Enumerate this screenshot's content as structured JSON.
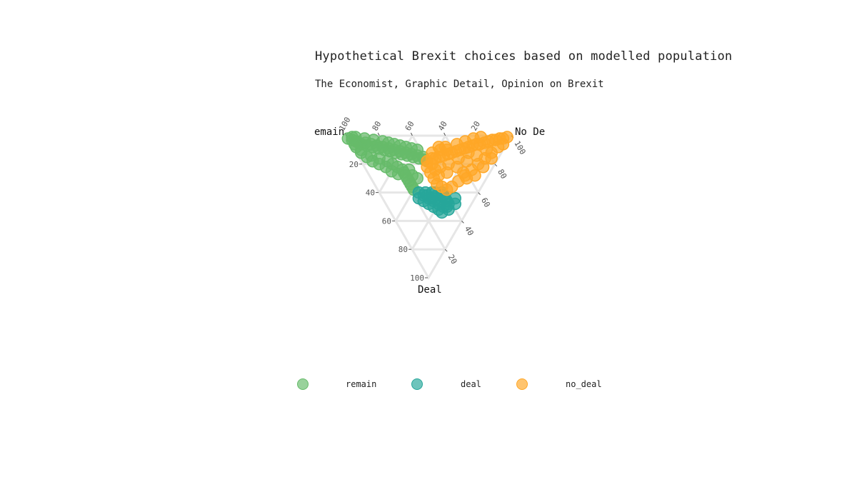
{
  "title": "Hypothetical Brexit choices based on modelled population",
  "subtitle": "The Economist, Graphic Detail, Opinion on Brexit",
  "chart_data": {
    "type": "ternary-scatter",
    "axes": {
      "a": {
        "title": "Remain",
        "display_title": "emain",
        "ticks": [
          100,
          80,
          60,
          40,
          20
        ]
      },
      "b": {
        "title": "Deal",
        "display_title": "Deal",
        "ticks": [
          20,
          40,
          60,
          80,
          100
        ]
      },
      "c": {
        "title": "No Deal",
        "display_title": "No De",
        "ticks": [
          100,
          80,
          60,
          40,
          20
        ]
      },
      "range": [
        0,
        100
      ],
      "grid": true
    },
    "series": [
      {
        "name": "remain",
        "color": "#66bb6a",
        "points": [
          [
            98,
            2,
            0
          ],
          [
            95,
            3,
            2
          ],
          [
            92,
            4,
            4
          ],
          [
            90,
            5,
            5
          ],
          [
            88,
            6,
            6
          ],
          [
            86,
            5,
            9
          ],
          [
            84,
            7,
            9
          ],
          [
            82,
            6,
            12
          ],
          [
            80,
            8,
            12
          ],
          [
            78,
            7,
            15
          ],
          [
            76,
            9,
            15
          ],
          [
            74,
            8,
            18
          ],
          [
            72,
            10,
            18
          ],
          [
            70,
            9,
            21
          ],
          [
            68,
            11,
            21
          ],
          [
            66,
            10,
            24
          ],
          [
            64,
            12,
            24
          ],
          [
            62,
            11,
            27
          ],
          [
            60,
            13,
            27
          ],
          [
            58,
            12,
            30
          ],
          [
            56,
            14,
            30
          ],
          [
            54,
            13,
            33
          ],
          [
            52,
            15,
            33
          ],
          [
            50,
            14,
            36
          ],
          [
            48,
            16,
            36
          ],
          [
            46,
            15,
            39
          ],
          [
            44,
            17,
            39
          ],
          [
            90,
            8,
            2
          ],
          [
            85,
            12,
            3
          ],
          [
            80,
            15,
            5
          ],
          [
            75,
            18,
            7
          ],
          [
            70,
            20,
            10
          ],
          [
            65,
            22,
            13
          ],
          [
            60,
            25,
            15
          ],
          [
            55,
            27,
            18
          ],
          [
            50,
            28,
            22
          ],
          [
            48,
            30,
            22
          ],
          [
            46,
            32,
            22
          ],
          [
            44,
            34,
            22
          ],
          [
            42,
            36,
            22
          ],
          [
            40,
            38,
            22
          ],
          [
            94,
            1,
            5
          ],
          [
            88,
            2,
            10
          ],
          [
            82,
            3,
            15
          ],
          [
            76,
            4,
            20
          ],
          [
            72,
            5,
            23
          ],
          [
            68,
            6,
            26
          ],
          [
            64,
            7,
            29
          ],
          [
            60,
            8,
            32
          ],
          [
            56,
            9,
            35
          ],
          [
            52,
            10,
            38
          ],
          [
            78,
            14,
            8
          ],
          [
            72,
            16,
            12
          ],
          [
            66,
            18,
            16
          ],
          [
            62,
            20,
            18
          ],
          [
            58,
            22,
            20
          ],
          [
            54,
            24,
            22
          ],
          [
            52,
            26,
            22
          ],
          [
            50,
            24,
            26
          ],
          [
            46,
            28,
            26
          ],
          [
            42,
            30,
            28
          ],
          [
            86,
            10,
            4
          ],
          [
            92,
            6,
            2
          ],
          [
            96,
            1,
            3
          ]
        ]
      },
      {
        "name": "deal",
        "color": "#26a69a",
        "points": [
          [
            34,
            44,
            22
          ],
          [
            30,
            46,
            24
          ],
          [
            26,
            48,
            26
          ],
          [
            22,
            50,
            28
          ],
          [
            18,
            52,
            30
          ],
          [
            15,
            54,
            31
          ],
          [
            20,
            46,
            34
          ],
          [
            24,
            42,
            34
          ],
          [
            28,
            40,
            32
          ],
          [
            32,
            40,
            28
          ],
          [
            36,
            40,
            24
          ],
          [
            26,
            44,
            30
          ],
          [
            20,
            48,
            32
          ],
          [
            16,
            50,
            34
          ],
          [
            12,
            52,
            36
          ],
          [
            14,
            48,
            38
          ],
          [
            18,
            44,
            38
          ],
          [
            22,
            40,
            38
          ],
          [
            10,
            48,
            42
          ],
          [
            12,
            44,
            44
          ],
          [
            30,
            42,
            28
          ],
          [
            24,
            46,
            30
          ],
          [
            28,
            44,
            28
          ],
          [
            32,
            42,
            26
          ],
          [
            20,
            42,
            38
          ],
          [
            16,
            46,
            38
          ],
          [
            26,
            40,
            34
          ],
          [
            14,
            50,
            36
          ]
        ]
      },
      {
        "name": "no_deal",
        "color": "#ffa726",
        "points": [
          [
            2,
            1,
            97
          ],
          [
            4,
            2,
            94
          ],
          [
            6,
            2,
            92
          ],
          [
            8,
            3,
            89
          ],
          [
            10,
            3,
            87
          ],
          [
            12,
            4,
            84
          ],
          [
            14,
            5,
            81
          ],
          [
            16,
            6,
            78
          ],
          [
            18,
            6,
            76
          ],
          [
            20,
            7,
            73
          ],
          [
            22,
            8,
            70
          ],
          [
            24,
            9,
            67
          ],
          [
            26,
            10,
            64
          ],
          [
            28,
            11,
            61
          ],
          [
            30,
            12,
            58
          ],
          [
            32,
            13,
            55
          ],
          [
            34,
            14,
            52
          ],
          [
            36,
            15,
            49
          ],
          [
            38,
            16,
            46
          ],
          [
            40,
            16,
            44
          ],
          [
            4,
            8,
            88
          ],
          [
            6,
            12,
            82
          ],
          [
            8,
            16,
            76
          ],
          [
            10,
            20,
            70
          ],
          [
            12,
            24,
            64
          ],
          [
            14,
            28,
            58
          ],
          [
            16,
            32,
            52
          ],
          [
            18,
            36,
            46
          ],
          [
            20,
            38,
            42
          ],
          [
            24,
            36,
            40
          ],
          [
            28,
            34,
            38
          ],
          [
            32,
            30,
            38
          ],
          [
            36,
            26,
            38
          ],
          [
            40,
            22,
            38
          ],
          [
            42,
            18,
            40
          ],
          [
            10,
            10,
            80
          ],
          [
            14,
            14,
            72
          ],
          [
            18,
            18,
            64
          ],
          [
            22,
            22,
            56
          ],
          [
            26,
            26,
            48
          ],
          [
            30,
            28,
            42
          ],
          [
            34,
            24,
            42
          ],
          [
            38,
            20,
            42
          ],
          [
            20,
            12,
            68
          ],
          [
            24,
            16,
            60
          ],
          [
            28,
            20,
            52
          ],
          [
            32,
            22,
            46
          ],
          [
            12,
            30,
            58
          ],
          [
            16,
            26,
            58
          ],
          [
            8,
            28,
            64
          ],
          [
            6,
            22,
            72
          ],
          [
            4,
            16,
            80
          ],
          [
            2,
            6,
            92
          ],
          [
            36,
            8,
            56
          ],
          [
            34,
            10,
            56
          ],
          [
            30,
            6,
            64
          ],
          [
            26,
            4,
            70
          ],
          [
            22,
            2,
            76
          ],
          [
            18,
            1,
            81
          ],
          [
            40,
            8,
            52
          ],
          [
            42,
            12,
            46
          ],
          [
            38,
            10,
            52
          ]
        ]
      }
    ],
    "legend": {
      "placement": "bottom",
      "items": [
        {
          "label": "remain",
          "color": "#66bb6a"
        },
        {
          "label": "deal",
          "color": "#26a69a"
        },
        {
          "label": "no_deal",
          "color": "#ffa726"
        }
      ]
    }
  }
}
